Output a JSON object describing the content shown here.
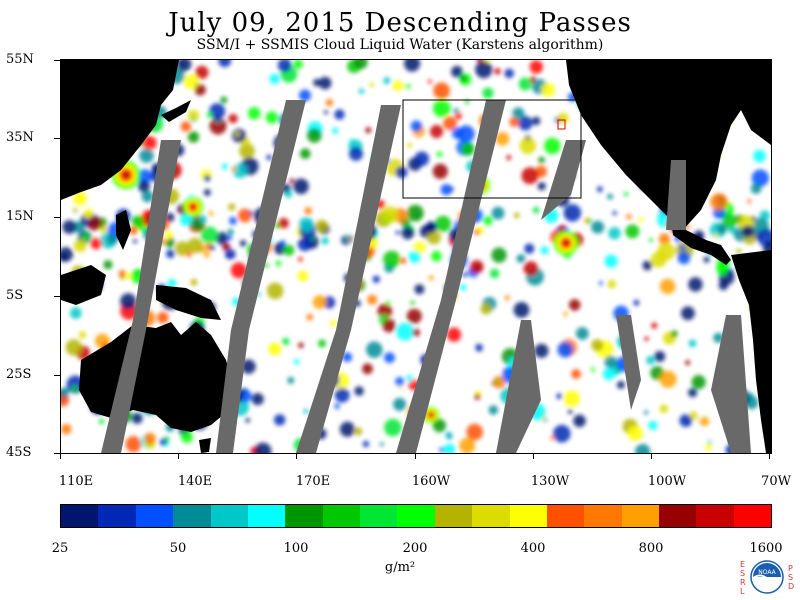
{
  "title": "July 09, 2015  Descending Passes",
  "subtitle": "SSM/I + SSMIS Cloud Liquid Water (Karstens algorithm)",
  "map": {
    "lat_labels": [
      "55N",
      "35N",
      "15N",
      "5S",
      "25S",
      "45S"
    ],
    "lon_labels": [
      "110E",
      "140E",
      "170E",
      "160W",
      "130W",
      "100W",
      "70W"
    ]
  },
  "colorbar": {
    "colors": [
      "#00156e",
      "#0028b4",
      "#0050ff",
      "#008c96",
      "#00c8c8",
      "#00ffff",
      "#009600",
      "#00c800",
      "#00e632",
      "#00ff00",
      "#b4b400",
      "#dcdc00",
      "#ffff00",
      "#ff5000",
      "#ff7800",
      "#ffa000",
      "#960000",
      "#c80000",
      "#ff0000"
    ],
    "tick_labels": [
      "25",
      "50",
      "100",
      "200",
      "400",
      "800",
      "1600"
    ],
    "units": "g/m²"
  },
  "logo": {
    "left_letters": [
      "E",
      "S",
      "R",
      "L"
    ],
    "right_letters": [
      "P",
      "S",
      "D"
    ],
    "center": "NOAA"
  },
  "colors": {
    "land": "#000000",
    "no_data_swath_gap": "#696969",
    "frame": "#000000"
  }
}
